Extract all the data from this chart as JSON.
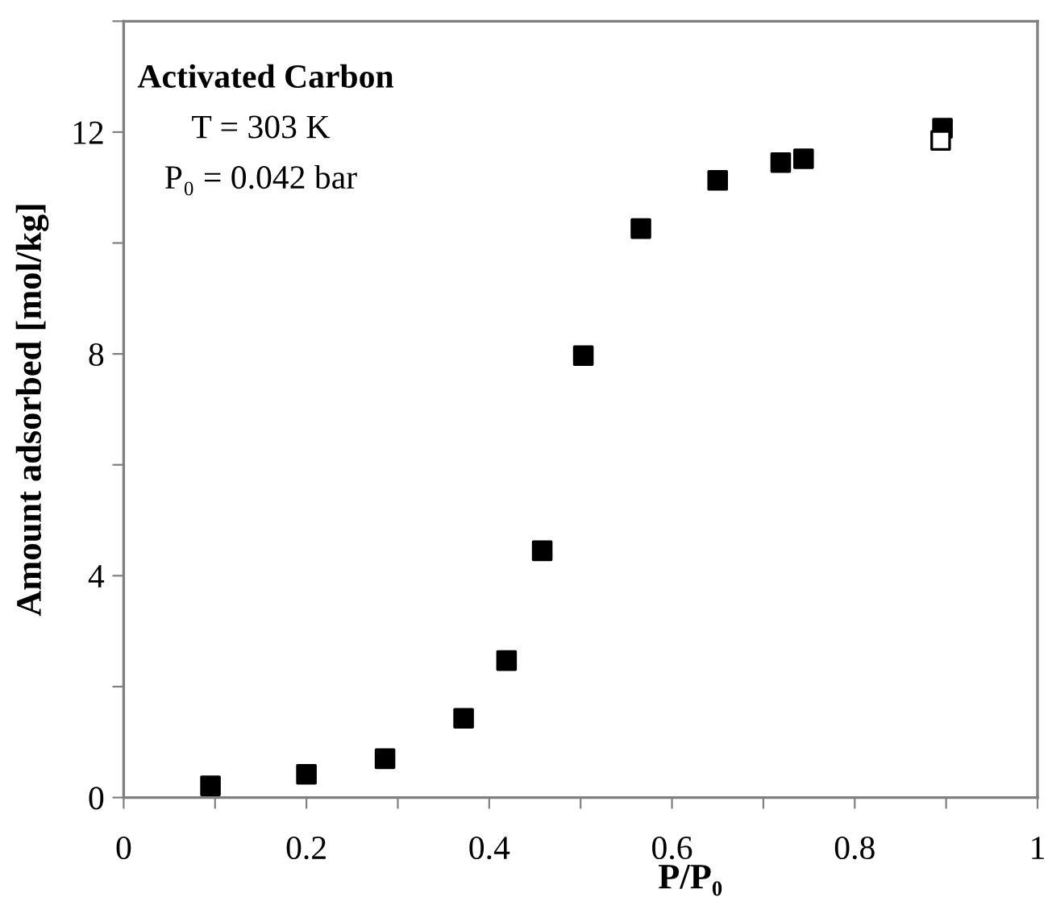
{
  "chart_data": {
    "type": "scatter",
    "xlabel": "P/P₀",
    "ylabel": "Amount adsorbed [mol/kg]",
    "annotations": [
      "Activated Carbon",
      "T = 303 K",
      "P₀ = 0.042 bar"
    ],
    "series": [
      {
        "color": "#000000",
        "marker": "square",
        "x": [
          0.095,
          0.2,
          0.286,
          0.372,
          0.419,
          0.458,
          0.503,
          0.566,
          0.65,
          0.719,
          0.744,
          0.896
        ],
        "values": [
          0.21,
          0.42,
          0.7,
          1.43,
          2.47,
          4.45,
          7.97,
          10.26,
          11.13,
          11.45,
          11.52,
          12.07
        ]
      },
      {
        "color": "#ffffff",
        "marker": "square",
        "x": [
          0.894
        ],
        "values": [
          11.85
        ]
      }
    ],
    "xlim": [
      0,
      1
    ],
    "ylim": [
      0,
      14
    ],
    "xticks": [
      0,
      {
        "value": 0.1,
        "label": null
      },
      0.2,
      {
        "value": 0.3,
        "label": null
      },
      0.4,
      {
        "value": 0.5,
        "label": null
      },
      0.6,
      {
        "value": 0.7,
        "label": null
      },
      0.8,
      {
        "value": 0.9,
        "label": null
      },
      1
    ],
    "yticks": [
      0,
      {
        "value": 2,
        "label": null
      },
      4,
      {
        "value": 6,
        "label": null
      },
      8,
      {
        "value": 10,
        "label": null
      },
      12,
      {
        "value": 14,
        "label": null
      }
    ],
    "grid": false,
    "legend": false
  }
}
